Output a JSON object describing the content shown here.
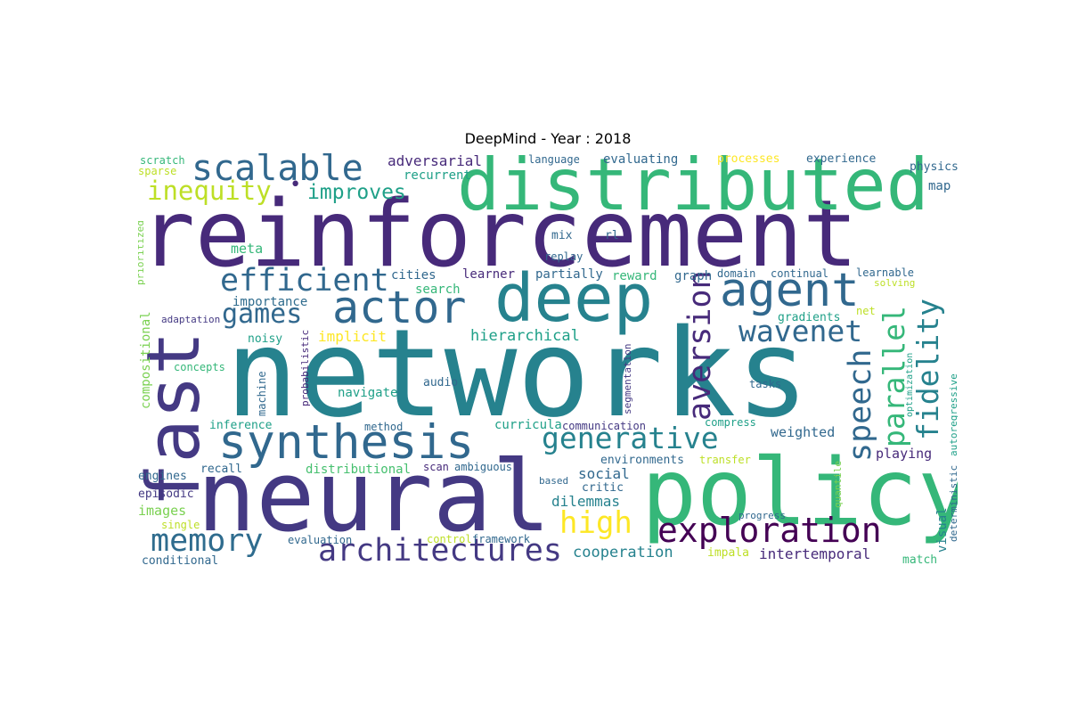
{
  "figure": {
    "title": "DeepMind - Year : 2018"
  },
  "wordcloud": {
    "colors": {
      "c1": "#472a7a",
      "c2": "#443983",
      "c3": "#31688e",
      "c4": "#2f6c8e",
      "c5": "#26828e",
      "c6": "#1fa088",
      "c7": "#35b779",
      "c8": "#46c06f",
      "c9": "#7ad151",
      "c10": "#bddf26",
      "c11": "#fde725",
      "c12": "#440154"
    },
    "words": [
      {
        "text": "reinforcement"
      },
      {
        "text": "networks"
      },
      {
        "text": "neural"
      },
      {
        "text": "policy"
      },
      {
        "text": "distributed"
      },
      {
        "text": "fast"
      },
      {
        "text": "deep"
      },
      {
        "text": "synthesis"
      },
      {
        "text": "agent"
      },
      {
        "text": "actor"
      },
      {
        "text": "scalable"
      },
      {
        "text": "efficient"
      },
      {
        "text": "exploration"
      },
      {
        "text": "architectures"
      },
      {
        "text": "memory"
      },
      {
        "text": "generative"
      },
      {
        "text": "aversion"
      },
      {
        "text": "speech"
      },
      {
        "text": "wavenet"
      },
      {
        "text": "parallel"
      },
      {
        "text": "fidelity"
      },
      {
        "text": "high"
      },
      {
        "text": "games"
      },
      {
        "text": "inequity"
      },
      {
        "text": "improves"
      },
      {
        "text": "adversarial"
      },
      {
        "text": "recurrent"
      },
      {
        "text": "language"
      },
      {
        "text": "evaluating"
      },
      {
        "text": "processes"
      },
      {
        "text": "experience"
      },
      {
        "text": "physics"
      },
      {
        "text": "map"
      },
      {
        "text": "scratch"
      },
      {
        "text": "sparse"
      },
      {
        "text": "prioritized"
      },
      {
        "text": "meta"
      },
      {
        "text": "mix"
      },
      {
        "text": "rl"
      },
      {
        "text": "replay"
      },
      {
        "text": "cities"
      },
      {
        "text": "learner"
      },
      {
        "text": "partially"
      },
      {
        "text": "reward"
      },
      {
        "text": "graph"
      },
      {
        "text": "domain"
      },
      {
        "text": "continual"
      },
      {
        "text": "learnable"
      },
      {
        "text": "solving"
      },
      {
        "text": "search"
      },
      {
        "text": "importance"
      },
      {
        "text": "compositional"
      },
      {
        "text": "adaptation"
      },
      {
        "text": "gradients"
      },
      {
        "text": "net"
      },
      {
        "text": "noisy"
      },
      {
        "text": "implicit"
      },
      {
        "text": "hierarchical"
      },
      {
        "text": "probabilistic"
      },
      {
        "text": "segmentation"
      },
      {
        "text": "optimization"
      },
      {
        "text": "autoregressive"
      },
      {
        "text": "concepts"
      },
      {
        "text": "machine"
      },
      {
        "text": "navigate"
      },
      {
        "text": "audio"
      },
      {
        "text": "tasks"
      },
      {
        "text": "inference"
      },
      {
        "text": "method"
      },
      {
        "text": "curricula"
      },
      {
        "text": "communication"
      },
      {
        "text": "compress"
      },
      {
        "text": "weighted"
      },
      {
        "text": "playing"
      },
      {
        "text": "engines"
      },
      {
        "text": "recall"
      },
      {
        "text": "distributional"
      },
      {
        "text": "scan"
      },
      {
        "text": "ambiguous"
      },
      {
        "text": "environments"
      },
      {
        "text": "transfer"
      },
      {
        "text": "social"
      },
      {
        "text": "deterministic"
      },
      {
        "text": "episodic"
      },
      {
        "text": "based"
      },
      {
        "text": "critic"
      },
      {
        "text": "dilemmas"
      },
      {
        "text": "quantile"
      },
      {
        "text": "visual"
      },
      {
        "text": "images"
      },
      {
        "text": "single"
      },
      {
        "text": "progress"
      },
      {
        "text": "evaluation"
      },
      {
        "text": "control"
      },
      {
        "text": "framework"
      },
      {
        "text": "cooperation"
      },
      {
        "text": "impala"
      },
      {
        "text": "intertemporal"
      },
      {
        "text": "match"
      },
      {
        "text": "conditional"
      }
    ]
  }
}
